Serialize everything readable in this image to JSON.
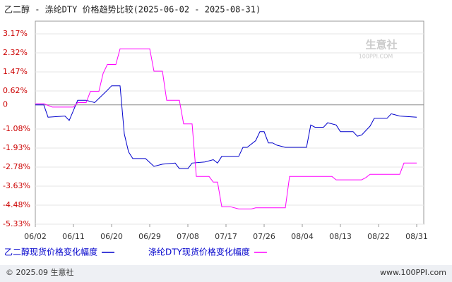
{
  "chart_data": {
    "type": "line",
    "title": "乙二醇 - 涤纶DTY 价格趋势比较(2025-06-02 - 2025-08-31)",
    "watermark": [
      "生意社",
      "100PPI.COM"
    ],
    "footer": [
      "© 2025.09 生意社",
      "www.100PPI.com"
    ],
    "xlim": [
      "06/02",
      "08/31"
    ],
    "xticks": [
      "06/02",
      "06/11",
      "06/20",
      "06/29",
      "07/08",
      "07/17",
      "07/26",
      "08/04",
      "08/13",
      "08/22",
      "08/31"
    ],
    "ylim": [
      -5.33,
      3.17
    ],
    "yticks": [
      {
        "value": 3.17,
        "label": "3.17%"
      },
      {
        "value": 2.32,
        "label": "2.32%"
      },
      {
        "value": 1.47,
        "label": "1.47%"
      },
      {
        "value": 0.62,
        "label": "0.62%"
      },
      0,
      {
        "value": -1.08,
        "label": "-1.08%"
      },
      {
        "value": -1.93,
        "label": "-1.93%"
      },
      {
        "value": -2.78,
        "label": "-2.78%"
      },
      {
        "value": -3.63,
        "label": "-3.63%"
      },
      {
        "value": -4.48,
        "label": "-4.48%"
      },
      {
        "value": -5.33,
        "label": "-5.33%"
      }
    ],
    "grid": true,
    "series": [
      {
        "name": "乙二醇现货价格变化幅度",
        "color": "#0000cc",
        "x": [
          "06/02",
          "06/04",
          "06/05",
          "06/09",
          "06/10",
          "06/12",
          "06/14",
          "06/16",
          "06/19",
          "06/20",
          "06/22",
          "06/23",
          "06/24",
          "06/25",
          "06/28",
          "06/30",
          "07/02",
          "07/05",
          "07/06",
          "07/08",
          "07/09",
          "07/12",
          "07/14",
          "07/15",
          "07/16",
          "07/20",
          "07/21",
          "07/22",
          "07/24",
          "07/25",
          "07/26",
          "07/27",
          "07/28",
          "07/29",
          "07/31",
          "08/05",
          "08/06",
          "08/07",
          "08/09",
          "08/10",
          "08/12",
          "08/13",
          "08/16",
          "08/17",
          "08/18",
          "08/20",
          "08/21",
          "08/24",
          "08/25",
          "08/26",
          "08/27",
          "08/31"
        ],
        "values": [
          0,
          0,
          -0.55,
          -0.5,
          -0.7,
          0.2,
          0.2,
          0.1,
          0.65,
          0.85,
          0.85,
          -1.3,
          -2.1,
          -2.4,
          -2.4,
          -2.75,
          -2.65,
          -2.6,
          -2.85,
          -2.85,
          -2.6,
          -2.55,
          -2.45,
          -2.6,
          -2.3,
          -2.3,
          -1.9,
          -1.9,
          -1.6,
          -1.2,
          -1.2,
          -1.7,
          -1.7,
          -1.8,
          -1.9,
          -1.9,
          -0.9,
          -1.0,
          -1.0,
          -0.8,
          -0.9,
          -1.2,
          -1.2,
          -1.4,
          -1.35,
          -0.95,
          -0.6,
          -0.6,
          -0.4,
          -0.45,
          -0.5,
          -0.55
        ]
      },
      {
        "name": "涤纶DTY现货价格变化幅度",
        "color": "#ff00ff",
        "x": [
          "06/02",
          "06/04",
          "06/06",
          "06/11",
          "06/12",
          "06/14",
          "06/15",
          "06/17",
          "06/18",
          "06/19",
          "06/21",
          "06/22",
          "06/29",
          "06/30",
          "07/02",
          "07/03",
          "07/06",
          "07/07",
          "07/09",
          "07/10",
          "07/13",
          "07/14",
          "07/15",
          "07/16",
          "07/18",
          "07/20",
          "07/23",
          "07/24",
          "07/31",
          "08/01",
          "08/11",
          "08/12",
          "08/18",
          "08/19",
          "08/20",
          "08/27",
          "08/28",
          "08/31"
        ],
        "values": [
          0.05,
          0.05,
          -0.1,
          -0.1,
          0.1,
          0.1,
          0.6,
          0.6,
          1.4,
          1.8,
          1.8,
          2.5,
          2.5,
          1.5,
          1.5,
          0.2,
          0.2,
          -0.85,
          -0.85,
          -3.2,
          -3.2,
          -3.45,
          -3.45,
          -4.55,
          -4.55,
          -4.65,
          -4.65,
          -4.6,
          -4.6,
          -3.2,
          -3.2,
          -3.35,
          -3.35,
          -3.25,
          -3.1,
          -3.1,
          -2.6,
          -2.6
        ]
      }
    ]
  }
}
